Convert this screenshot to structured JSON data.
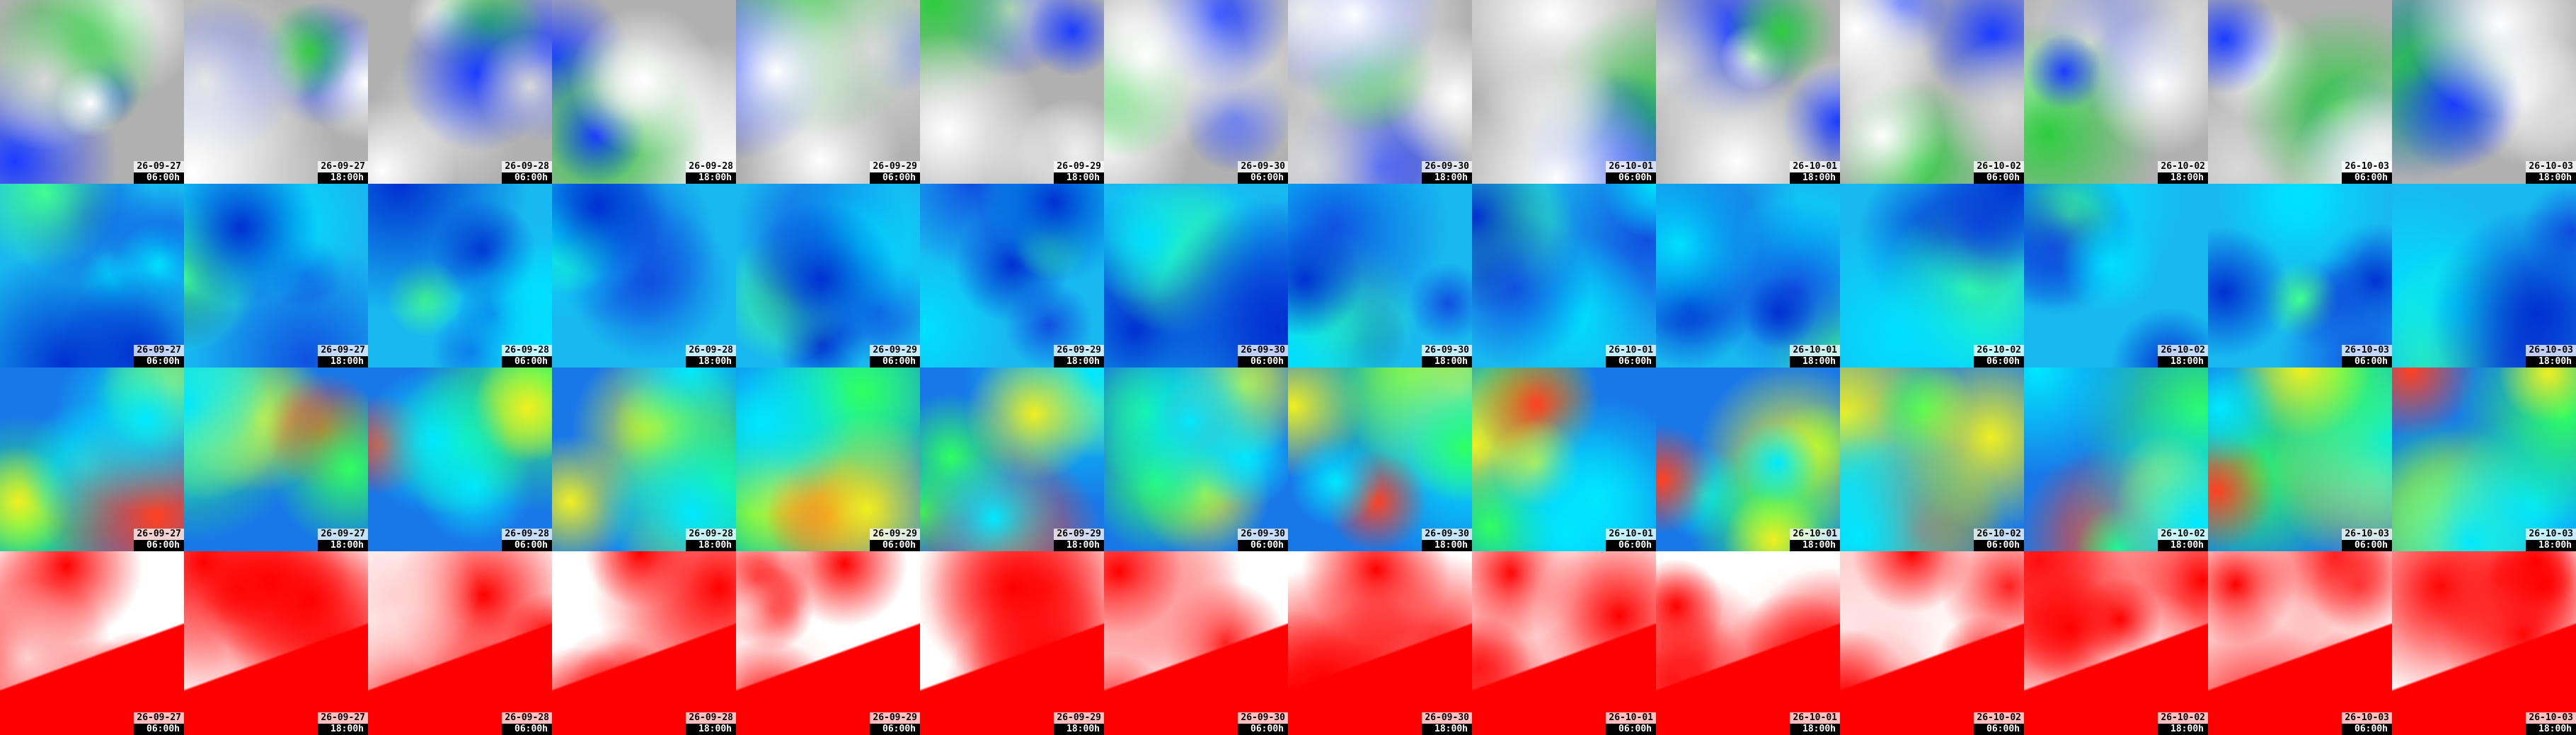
{
  "columns": [
    {
      "date": "26-09-27",
      "time": "06:00h"
    },
    {
      "date": "26-09-27",
      "time": "18:00h"
    },
    {
      "date": "26-09-28",
      "time": "06:00h"
    },
    {
      "date": "26-09-28",
      "time": "18:00h"
    },
    {
      "date": "26-09-29",
      "time": "06:00h"
    },
    {
      "date": "26-09-29",
      "time": "18:00h"
    },
    {
      "date": "26-09-30",
      "time": "06:00h"
    },
    {
      "date": "26-09-30",
      "time": "18:00h"
    },
    {
      "date": "26-10-01",
      "time": "06:00h"
    },
    {
      "date": "26-10-01",
      "time": "18:00h"
    },
    {
      "date": "26-10-02",
      "time": "06:00h"
    },
    {
      "date": "26-10-02",
      "time": "18:00h"
    },
    {
      "date": "26-10-03",
      "time": "06:00h"
    },
    {
      "date": "26-10-03",
      "time": "18:00h"
    }
  ]
}
